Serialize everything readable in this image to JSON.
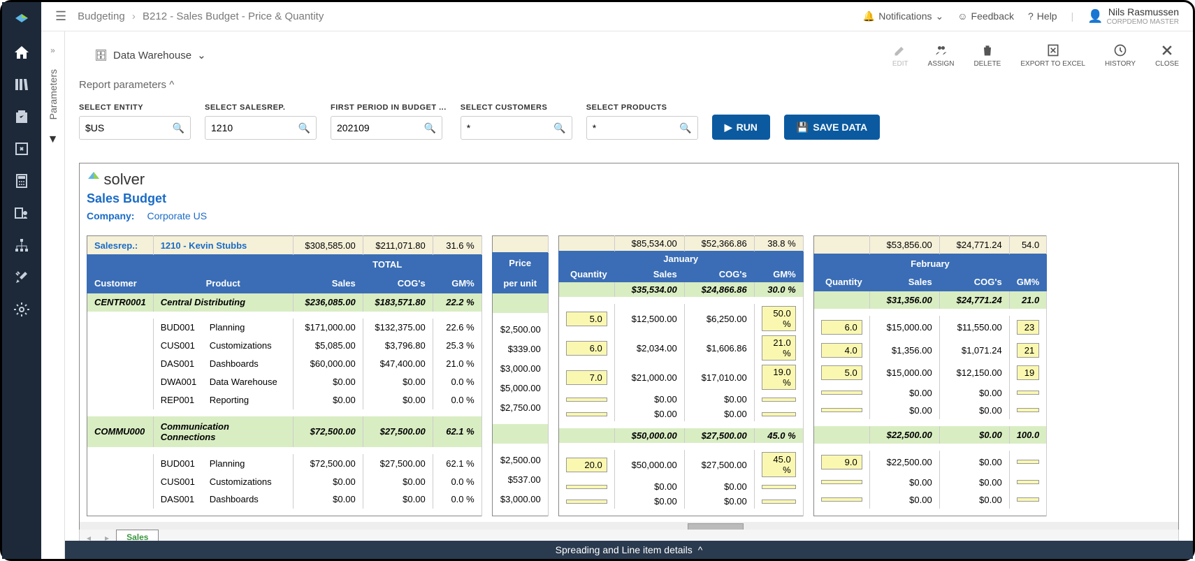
{
  "breadcrumb": {
    "root": "Budgeting",
    "page": "B212 - Sales Budget - Price & Quantity"
  },
  "topright": {
    "notifications": "Notifications",
    "feedback": "Feedback",
    "help": "Help",
    "user_name": "Nils Rasmussen",
    "user_company": "CorpDemo Master"
  },
  "toolbar": {
    "datasource": "Data Warehouse",
    "edit": "EDIT",
    "assign": "ASSIGN",
    "delete": "DELETE",
    "export": "EXPORT TO EXCEL",
    "history": "HISTORY",
    "close": "CLOSE"
  },
  "params_tab": "Parameters",
  "report_params_header": "Report parameters",
  "params": {
    "entity": {
      "label": "SELECT ENTITY",
      "value": "$US"
    },
    "salesrep": {
      "label": "SELECT SALESREP.",
      "value": "1210"
    },
    "period": {
      "label": "FIRST PERIOD IN BUDGET ...",
      "value": "202109"
    },
    "customers": {
      "label": "SELECT CUSTOMERS",
      "value": "*"
    },
    "products": {
      "label": "SELECT PRODUCTS",
      "value": "*"
    }
  },
  "buttons": {
    "run": "RUN",
    "save": "SAVE DATA"
  },
  "report": {
    "logo": "solver",
    "title": "Sales Budget",
    "company_label": "Company:",
    "company_value": "Corporate US",
    "salesrep_label": "Salesrep.:",
    "salesrep_value": "1210 - Kevin Stubbs"
  },
  "totals": {
    "sales": "$308,585.00",
    "cogs": "$211,071.80",
    "gm": "31.6 %"
  },
  "jan_totals": {
    "sales": "$85,534.00",
    "cogs": "$52,366.86",
    "gm": "38.8 %"
  },
  "feb_totals": {
    "sales": "$53,856.00",
    "cogs": "$24,771.24",
    "gm": "54.0"
  },
  "headers": {
    "customer": "Customer",
    "product": "Product",
    "total": "TOTAL",
    "sales": "Sales",
    "cogs": "COG's",
    "gm": "GM%",
    "price": "Price per unit",
    "quantity": "Quantity",
    "jan": "January",
    "feb": "February"
  },
  "groups": [
    {
      "code": "CENTR0001",
      "name": "Central Distributing",
      "sales": "$236,085.00",
      "cogs": "$183,571.80",
      "gm": "22.2 %",
      "jan_sales": "$35,534.00",
      "jan_cogs": "$24,866.86",
      "jan_gm": "30.0 %",
      "feb_sales": "$31,356.00",
      "feb_cogs": "$24,771.24",
      "feb_gm": "21.0",
      "rows": [
        {
          "code": "BUD001",
          "name": "Planning",
          "sales": "$171,000.00",
          "cogs": "$132,375.00",
          "gm": "22.6 %",
          "price": "$2,500.00",
          "jq": "5.0",
          "js": "$12,500.00",
          "jc": "$6,250.00",
          "jg": "50.0 %",
          "fq": "6.0",
          "fs": "$15,000.00",
          "fc": "$11,550.00",
          "fg": "23"
        },
        {
          "code": "CUS001",
          "name": "Customizations",
          "sales": "$5,085.00",
          "cogs": "$3,796.80",
          "gm": "25.3 %",
          "price": "$339.00",
          "jq": "6.0",
          "js": "$2,034.00",
          "jc": "$1,606.86",
          "jg": "21.0 %",
          "fq": "4.0",
          "fs": "$1,356.00",
          "fc": "$1,071.24",
          "fg": "21"
        },
        {
          "code": "DAS001",
          "name": "Dashboards",
          "sales": "$60,000.00",
          "cogs": "$47,400.00",
          "gm": "21.0 %",
          "price": "$3,000.00",
          "jq": "7.0",
          "js": "$21,000.00",
          "jc": "$17,010.00",
          "jg": "19.0 %",
          "fq": "5.0",
          "fs": "$15,000.00",
          "fc": "$12,150.00",
          "fg": "19"
        },
        {
          "code": "DWA001",
          "name": "Data Warehouse",
          "sales": "$0.00",
          "cogs": "$0.00",
          "gm": "0.0 %",
          "price": "$5,000.00",
          "jq": "",
          "js": "$0.00",
          "jc": "$0.00",
          "jg": "",
          "fq": "",
          "fs": "$0.00",
          "fc": "$0.00",
          "fg": ""
        },
        {
          "code": "REP001",
          "name": "Reporting",
          "sales": "$0.00",
          "cogs": "$0.00",
          "gm": "0.0 %",
          "price": "$2,750.00",
          "jq": "",
          "js": "$0.00",
          "jc": "$0.00",
          "jg": "",
          "fq": "",
          "fs": "$0.00",
          "fc": "$0.00",
          "fg": ""
        }
      ]
    },
    {
      "code": "COMMU000",
      "name": "Communication Connections",
      "sales": "$72,500.00",
      "cogs": "$27,500.00",
      "gm": "62.1 %",
      "jan_sales": "$50,000.00",
      "jan_cogs": "$27,500.00",
      "jan_gm": "45.0 %",
      "feb_sales": "$22,500.00",
      "feb_cogs": "$0.00",
      "feb_gm": "100.0",
      "rows": [
        {
          "code": "BUD001",
          "name": "Planning",
          "sales": "$72,500.00",
          "cogs": "$27,500.00",
          "gm": "62.1 %",
          "price": "$2,500.00",
          "jq": "20.0",
          "js": "$50,000.00",
          "jc": "$27,500.00",
          "jg": "45.0 %",
          "fq": "9.0",
          "fs": "$22,500.00",
          "fc": "$0.00",
          "fg": ""
        },
        {
          "code": "CUS001",
          "name": "Customizations",
          "sales": "$0.00",
          "cogs": "$0.00",
          "gm": "0.0 %",
          "price": "$537.00",
          "jq": "",
          "js": "$0.00",
          "jc": "$0.00",
          "jg": "",
          "fq": "",
          "fs": "$0.00",
          "fc": "$0.00",
          "fg": ""
        },
        {
          "code": "DAS001",
          "name": "Dashboards",
          "sales": "$0.00",
          "cogs": "$0.00",
          "gm": "0.0 %",
          "price": "$3,000.00",
          "jq": "",
          "js": "$0.00",
          "jc": "$0.00",
          "jg": "",
          "fq": "",
          "fs": "$0.00",
          "fc": "$0.00",
          "fg": ""
        }
      ]
    }
  ],
  "sheet_tab": "Sales",
  "footer": "Spreading and Line item details"
}
